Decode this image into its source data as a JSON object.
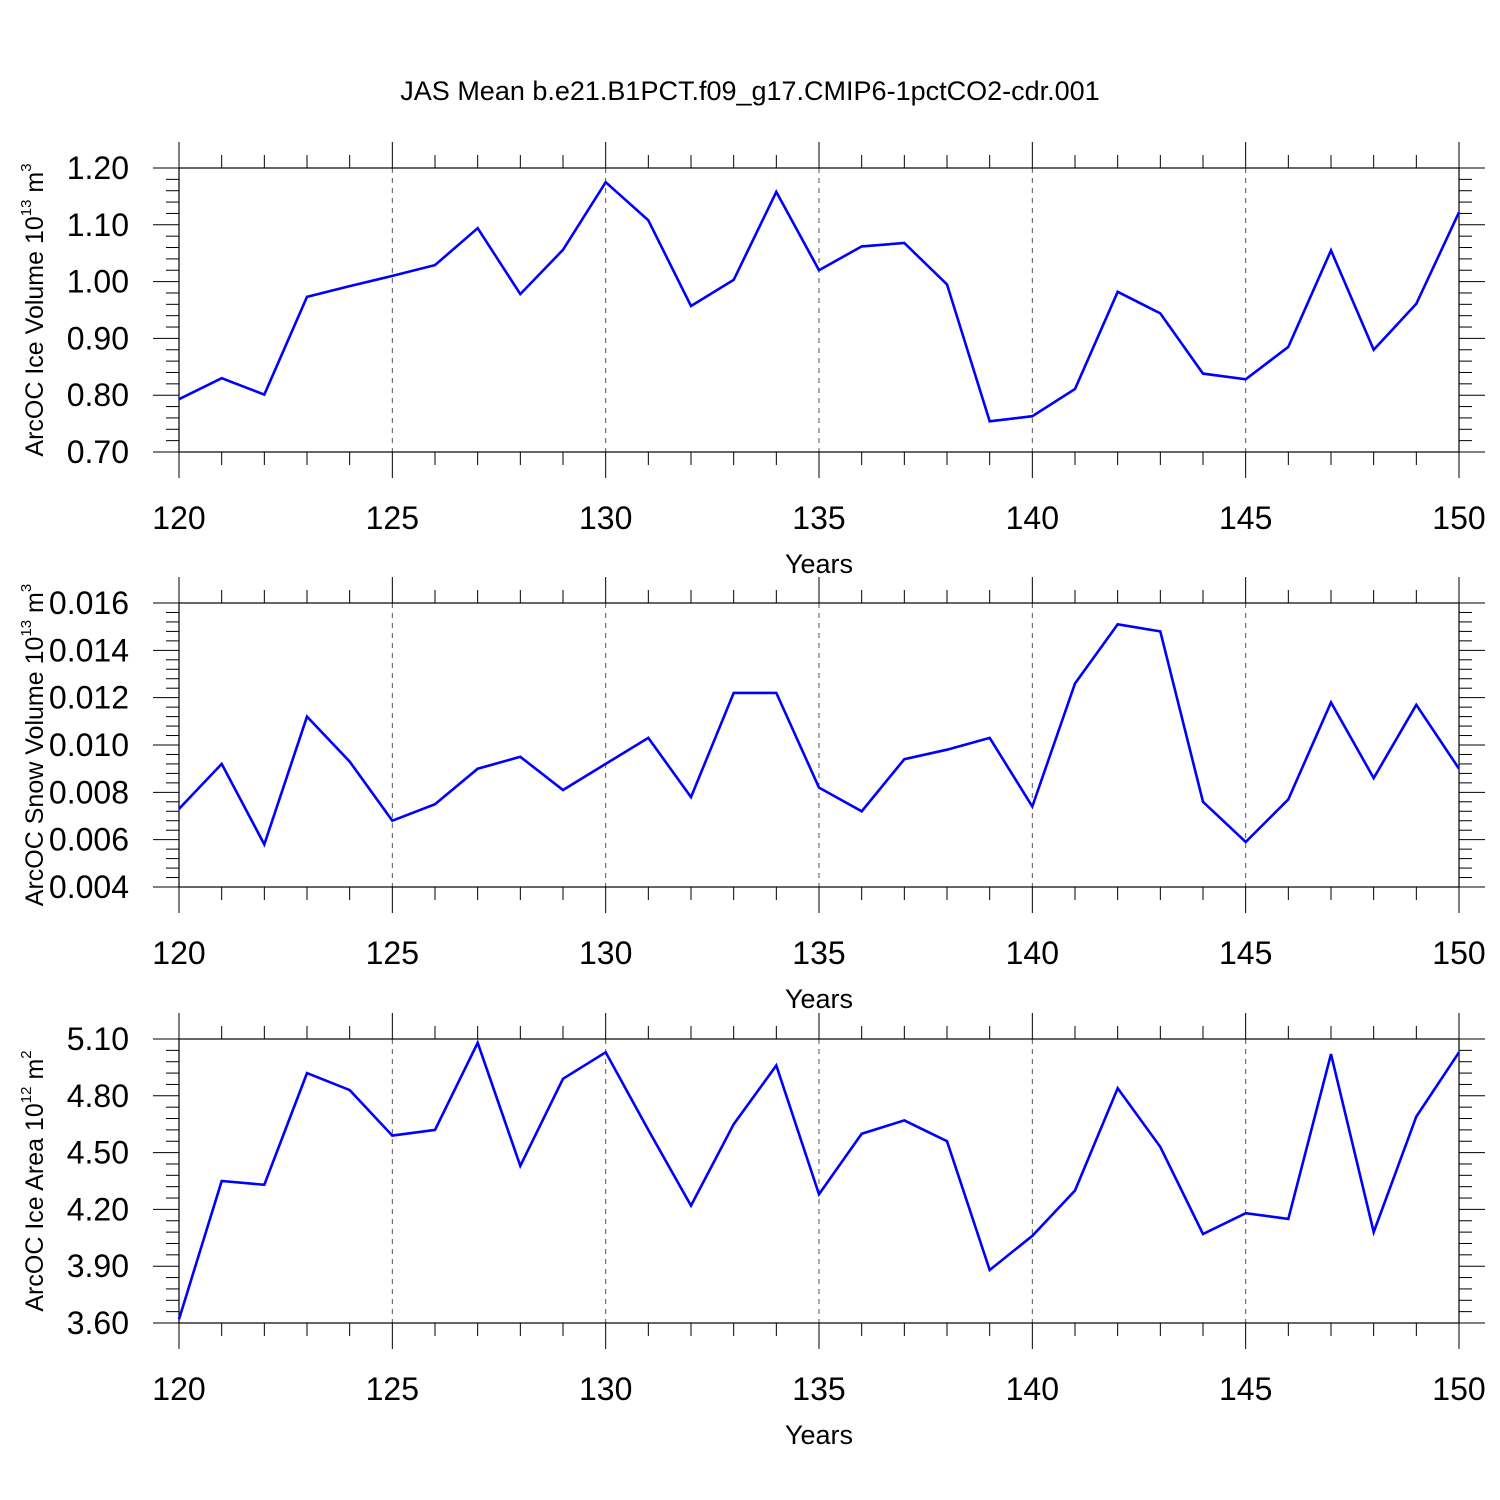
{
  "title": "JAS Mean b.e21.B1PCT.f09_g17.CMIP6-1pctCO2-cdr.001",
  "colors": {
    "line": "#0000ff",
    "axis": "#000000",
    "grid": "#555555"
  },
  "chart_data": [
    {
      "type": "line",
      "xlabel": "Years",
      "ylabel": {
        "text": "ArcOC Ice Volume 10",
        "exp": "13",
        "unit": " m",
        "unit_exp": "3"
      },
      "xlim": [
        120,
        150
      ],
      "ylim": [
        0.7,
        1.2
      ],
      "x_ticks": [
        "120",
        "125",
        "130",
        "135",
        "140",
        "145",
        "150"
      ],
      "y_ticks": [
        "0.70",
        "0.80",
        "0.90",
        "1.00",
        "1.10",
        "1.20"
      ],
      "x_grid": "dashed at major ticks",
      "series": [
        {
          "x": [
            120,
            121,
            122,
            123,
            124,
            125,
            126,
            127,
            128,
            129,
            130,
            131,
            132,
            133,
            134,
            135,
            136,
            137,
            138,
            139,
            140,
            141,
            142,
            143,
            144,
            145,
            146,
            147,
            148,
            149,
            150
          ],
          "values": [
            0.793,
            0.83,
            0.801,
            0.973,
            0.992,
            1.01,
            1.029,
            1.094,
            0.978,
            1.056,
            1.175,
            1.108,
            0.957,
            1.003,
            1.158,
            1.02,
            1.062,
            1.068,
            0.995,
            0.754,
            0.763,
            0.811,
            0.982,
            0.944,
            0.838,
            0.828,
            0.885,
            1.055,
            0.88,
            0.961,
            1.122
          ]
        }
      ]
    },
    {
      "type": "line",
      "xlabel": "Years",
      "ylabel": {
        "text": "ArcOC Snow Volume 10",
        "exp": "13",
        "unit": " m",
        "unit_exp": "3"
      },
      "xlim": [
        120,
        150
      ],
      "ylim": [
        0.004,
        0.016
      ],
      "x_ticks": [
        "120",
        "125",
        "130",
        "135",
        "140",
        "145",
        "150"
      ],
      "y_ticks": [
        "0.004",
        "0.006",
        "0.008",
        "0.010",
        "0.012",
        "0.014",
        "0.016"
      ],
      "x_grid": "dashed at major ticks",
      "series": [
        {
          "x": [
            120,
            121,
            122,
            123,
            124,
            125,
            126,
            127,
            128,
            129,
            130,
            131,
            132,
            133,
            134,
            135,
            136,
            137,
            138,
            139,
            140,
            141,
            142,
            143,
            144,
            145,
            146,
            147,
            148,
            149,
            150
          ],
          "values": [
            0.0073,
            0.0092,
            0.0058,
            0.0112,
            0.0093,
            0.0068,
            0.0075,
            0.009,
            0.0095,
            0.0081,
            0.0092,
            0.0103,
            0.0078,
            0.0122,
            0.0122,
            0.0082,
            0.0072,
            0.0094,
            0.0098,
            0.0103,
            0.0074,
            0.0126,
            0.0151,
            0.0148,
            0.0076,
            0.0059,
            0.0077,
            0.0118,
            0.0086,
            0.0117,
            0.009
          ]
        }
      ]
    },
    {
      "type": "line",
      "xlabel": "Years",
      "ylabel": {
        "text": "ArcOC Ice Area 10",
        "exp": "12",
        "unit": " m",
        "unit_exp": "2"
      },
      "xlim": [
        120,
        150
      ],
      "ylim": [
        3.6,
        5.1
      ],
      "x_ticks": [
        "120",
        "125",
        "130",
        "135",
        "140",
        "145",
        "150"
      ],
      "y_ticks": [
        "3.60",
        "3.90",
        "4.20",
        "4.50",
        "4.80",
        "5.10"
      ],
      "x_grid": "dashed at major ticks",
      "series": [
        {
          "x": [
            120,
            121,
            122,
            123,
            124,
            125,
            126,
            127,
            128,
            129,
            130,
            131,
            132,
            133,
            134,
            135,
            136,
            137,
            138,
            139,
            140,
            141,
            142,
            143,
            144,
            145,
            146,
            147,
            148,
            149,
            150
          ],
          "values": [
            3.62,
            4.35,
            4.33,
            4.92,
            4.83,
            4.59,
            4.62,
            5.08,
            4.43,
            4.89,
            5.03,
            4.62,
            4.22,
            4.65,
            4.96,
            4.28,
            4.6,
            4.67,
            4.56,
            3.88,
            4.06,
            4.3,
            4.84,
            4.53,
            4.07,
            4.18,
            4.15,
            5.02,
            4.08,
            4.69,
            5.03
          ]
        }
      ]
    }
  ]
}
